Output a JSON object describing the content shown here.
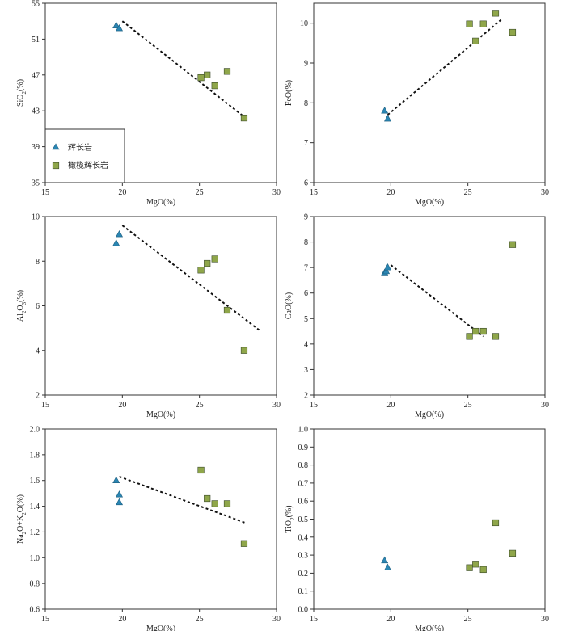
{
  "colors": {
    "gabbro": "#2a86b3",
    "olivine_gabbro": "#8fa64a",
    "marker_stroke": "#3a4a2a",
    "trend": "#111111"
  },
  "legend": {
    "gabbro_label": "辉长岩",
    "olivine_gabbro_label": "橄榄辉长岩"
  },
  "chart_data": [
    {
      "type": "scatter",
      "id": "sio2",
      "xlabel": "MgO(%)",
      "ylabel": "SiO2(%)",
      "xlim": [
        15,
        30
      ],
      "ylim": [
        35,
        55
      ],
      "xticks": [
        15,
        20,
        25,
        30
      ],
      "yticks": [
        35,
        39,
        43,
        47,
        51,
        55
      ],
      "ytick_labels": [
        "35",
        "39",
        "43",
        "47",
        "51",
        "55"
      ],
      "series": [
        {
          "name": "辉长岩",
          "marker": "triangle",
          "x": [
            19.6,
            19.8
          ],
          "y": [
            52.5,
            52.2
          ]
        },
        {
          "name": "橄榄辉长岩",
          "marker": "square",
          "x": [
            25.1,
            25.5,
            26.0,
            26.8,
            27.9
          ],
          "y": [
            46.7,
            47.0,
            45.8,
            47.4,
            42.2
          ]
        }
      ],
      "trend": [
        [
          20.0,
          53.0
        ],
        [
          28.0,
          42.2
        ]
      ],
      "legend": true
    },
    {
      "type": "scatter",
      "id": "feo",
      "xlabel": "MgO(%)",
      "ylabel": "FeO(%)",
      "xlim": [
        15,
        30
      ],
      "ylim": [
        6,
        10.5
      ],
      "xticks": [
        15,
        20,
        25,
        30
      ],
      "yticks": [
        6,
        7,
        8,
        9,
        10
      ],
      "ytick_labels": [
        "6",
        "7",
        "8",
        "9",
        "10"
      ],
      "series": [
        {
          "name": "辉长岩",
          "marker": "triangle",
          "x": [
            19.6,
            19.8
          ],
          "y": [
            7.8,
            7.6
          ]
        },
        {
          "name": "橄榄辉长岩",
          "marker": "square",
          "x": [
            25.1,
            25.5,
            26.0,
            26.8,
            27.9
          ],
          "y": [
            9.98,
            9.55,
            9.98,
            10.25,
            9.77
          ]
        }
      ],
      "trend": [
        [
          19.8,
          7.7
        ],
        [
          27.2,
          10.1
        ]
      ],
      "legend": false
    },
    {
      "type": "scatter",
      "id": "al2o3",
      "xlabel": "MgO(%)",
      "ylabel": "Al2O3(%)",
      "xlim": [
        15,
        30
      ],
      "ylim": [
        2,
        10
      ],
      "xticks": [
        15,
        20,
        25,
        30
      ],
      "yticks": [
        2,
        4,
        6,
        8,
        10
      ],
      "ytick_labels": [
        "2",
        "4",
        "6",
        "8",
        "10"
      ],
      "series": [
        {
          "name": "辉长岩",
          "marker": "triangle",
          "x": [
            19.6,
            19.8
          ],
          "y": [
            8.8,
            9.2
          ]
        },
        {
          "name": "橄榄辉长岩",
          "marker": "square",
          "x": [
            25.1,
            25.5,
            26.0,
            26.8,
            27.9
          ],
          "y": [
            7.6,
            7.9,
            8.1,
            5.8,
            4.0
          ]
        }
      ],
      "trend": [
        [
          20.0,
          9.6
        ],
        [
          28.9,
          4.9
        ]
      ],
      "legend": false
    },
    {
      "type": "scatter",
      "id": "cao",
      "xlabel": "MgO(%)",
      "ylabel": "CaO(%)",
      "xlim": [
        15,
        30
      ],
      "ylim": [
        2,
        9
      ],
      "xticks": [
        15,
        20,
        25,
        30
      ],
      "yticks": [
        2,
        3,
        4,
        5,
        6,
        7,
        8,
        9
      ],
      "ytick_labels": [
        "2",
        "3",
        "4",
        "5",
        "6",
        "7",
        "8",
        "9"
      ],
      "series": [
        {
          "name": "辉长岩",
          "marker": "triangle",
          "x": [
            19.6,
            19.7,
            19.8
          ],
          "y": [
            6.8,
            6.85,
            7.0
          ]
        },
        {
          "name": "橄榄辉长岩",
          "marker": "square",
          "x": [
            25.1,
            25.5,
            26.0,
            26.8,
            27.9
          ],
          "y": [
            4.3,
            4.5,
            4.5,
            4.3,
            7.9
          ]
        }
      ],
      "trend": [
        [
          20.0,
          7.1
        ],
        [
          26.0,
          4.3
        ]
      ],
      "legend": false
    },
    {
      "type": "scatter",
      "id": "alkali",
      "xlabel": "MgO(%)",
      "ylabel": "Na2O+K2O(%)",
      "xlim": [
        15,
        30
      ],
      "ylim": [
        0.6,
        2.0
      ],
      "xticks": [
        15,
        20,
        25,
        30
      ],
      "yticks": [
        0.6,
        0.8,
        1.0,
        1.2,
        1.4,
        1.6,
        1.8,
        2.0
      ],
      "ytick_labels": [
        "0.6",
        "0.8",
        "1.0",
        "1.2",
        "1.4",
        "1.6",
        "1.8",
        "2.0"
      ],
      "series": [
        {
          "name": "辉长岩",
          "marker": "triangle",
          "x": [
            19.6,
            19.8,
            19.8
          ],
          "y": [
            1.6,
            1.49,
            1.43
          ]
        },
        {
          "name": "橄榄辉长岩",
          "marker": "square",
          "x": [
            25.1,
            25.5,
            26.0,
            26.8,
            27.9
          ],
          "y": [
            1.68,
            1.46,
            1.42,
            1.42,
            1.11
          ]
        }
      ],
      "trend": [
        [
          19.8,
          1.63
        ],
        [
          28.0,
          1.27
        ]
      ],
      "legend": false
    },
    {
      "type": "scatter",
      "id": "tio2",
      "xlabel": "MgO(%)",
      "ylabel": "TiO2(%)",
      "xlim": [
        15,
        30
      ],
      "ylim": [
        0,
        1.0
      ],
      "xticks": [
        15,
        20,
        25,
        30
      ],
      "yticks": [
        0,
        0.1,
        0.2,
        0.3,
        0.4,
        0.5,
        0.6,
        0.7,
        0.8,
        0.9,
        1.0
      ],
      "ytick_labels": [
        "0.0",
        "0.1",
        "0.2",
        "0.3",
        "0.4",
        "0.5",
        "0.6",
        "0.7",
        "0.8",
        "0.9",
        "1.0"
      ],
      "series": [
        {
          "name": "辉长岩",
          "marker": "triangle",
          "x": [
            19.6,
            19.8
          ],
          "y": [
            0.27,
            0.23
          ]
        },
        {
          "name": "橄榄辉长岩",
          "marker": "square",
          "x": [
            25.1,
            25.5,
            26.0,
            26.8,
            27.9
          ],
          "y": [
            0.23,
            0.25,
            0.22,
            0.48,
            0.31
          ]
        }
      ],
      "trend": null,
      "legend": false
    }
  ]
}
